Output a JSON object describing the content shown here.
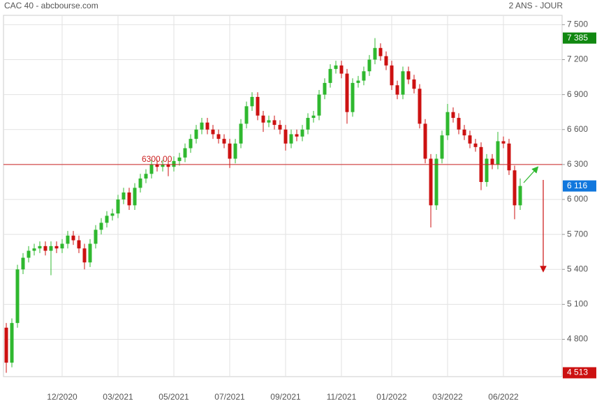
{
  "chart_data": {
    "type": "candlestick",
    "title": "CAC 40 - abcbourse.com",
    "subtitle": "2 ANS - JOUR",
    "categories": [
      null,
      null,
      null,
      null,
      null,
      null,
      null,
      null,
      null,
      null,
      "12/2020",
      null,
      null,
      null,
      null,
      null,
      null,
      null,
      null,
      null,
      "03/2021",
      null,
      null,
      null,
      null,
      null,
      null,
      null,
      null,
      null,
      "05/2021",
      null,
      null,
      null,
      null,
      null,
      null,
      null,
      null,
      null,
      "07/2021",
      null,
      null,
      null,
      null,
      null,
      null,
      null,
      null,
      null,
      "09/2021",
      null,
      null,
      null,
      null,
      null,
      null,
      null,
      null,
      null,
      "11/2021",
      null,
      null,
      null,
      null,
      null,
      null,
      null,
      null,
      "01/2022",
      null,
      null,
      null,
      null,
      null,
      null,
      null,
      null,
      null,
      "03/2022",
      null,
      null,
      null,
      null,
      null,
      null,
      null,
      null,
      null,
      "06/2022",
      null,
      null,
      null,
      null,
      null,
      null,
      null,
      null,
      null,
      null
    ],
    "open": [
      4900,
      4600,
      4940,
      5400,
      5500,
      5560,
      5580,
      5600,
      5560,
      5600,
      5580,
      5620,
      5690,
      5650,
      5580,
      5460,
      5620,
      5740,
      5800,
      5860,
      5880,
      6000,
      6060,
      5950,
      6100,
      6180,
      6220,
      6300,
      6280,
      6300,
      6280,
      6330,
      6360,
      6440,
      6520,
      6600,
      6660,
      6600,
      6560,
      6520,
      6480,
      6350,
      6480,
      6650,
      6800,
      6880,
      6720,
      6660,
      6680,
      6640,
      6600,
      6480,
      6560,
      6540,
      6600,
      6700,
      6720,
      6900,
      7000,
      7120,
      7150,
      7080,
      6750,
      7000,
      7020,
      7100,
      7200,
      7300,
      7230,
      7150,
      6980,
      6900,
      7100,
      7030,
      6950,
      6650,
      6350,
      5950,
      6350,
      6550,
      6750,
      6700,
      6600,
      6550,
      6480,
      6450,
      6150,
      6350,
      6300,
      6500,
      6480,
      6250,
      5950,
      null,
      null,
      null,
      null,
      null,
      null,
      null
    ],
    "high": [
      4940,
      4980,
      5440,
      5540,
      5600,
      5620,
      5640,
      5640,
      5640,
      5640,
      5660,
      5730,
      5730,
      5690,
      5620,
      5660,
      5780,
      5840,
      5900,
      5920,
      6040,
      6100,
      6100,
      6140,
      6220,
      6260,
      6340,
      6340,
      6340,
      6340,
      6370,
      6400,
      6480,
      6560,
      6640,
      6700,
      6700,
      6640,
      6600,
      6560,
      6520,
      6520,
      6690,
      6840,
      6920,
      6920,
      6760,
      6720,
      6720,
      6680,
      6640,
      6600,
      6600,
      6640,
      6740,
      6760,
      6940,
      7040,
      7160,
      7190,
      7190,
      7120,
      7040,
      7060,
      7140,
      7240,
      7385,
      7340,
      7270,
      7190,
      7020,
      7140,
      7140,
      7070,
      6990,
      6690,
      6390,
      6390,
      6590,
      6820,
      6790,
      6740,
      6640,
      6590,
      6520,
      6490,
      6390,
      6390,
      6580,
      6540,
      6520,
      6290,
      6180,
      null,
      null,
      null,
      null,
      null,
      null,
      null
    ],
    "low": [
      4513,
      4560,
      4900,
      5360,
      5460,
      5520,
      5540,
      5520,
      5350,
      5540,
      5540,
      5580,
      5610,
      5540,
      5400,
      5420,
      5580,
      5700,
      5760,
      5820,
      5840,
      5960,
      5910,
      5910,
      6060,
      6140,
      6180,
      6240,
      6240,
      6200,
      6240,
      6290,
      6320,
      6400,
      6480,
      6560,
      6560,
      6520,
      6480,
      6440,
      6270,
      6310,
      6440,
      6610,
      6760,
      6680,
      6580,
      6620,
      6600,
      6560,
      6420,
      6440,
      6500,
      6500,
      6560,
      6660,
      6680,
      6860,
      6960,
      7080,
      7040,
      6650,
      6710,
      6960,
      6980,
      7060,
      7160,
      7190,
      7110,
      6940,
      6860,
      6860,
      6990,
      6910,
      6610,
      6310,
      5760,
      5910,
      6310,
      6510,
      6660,
      6560,
      6510,
      6440,
      6410,
      6080,
      6110,
      6260,
      6260,
      6440,
      6210,
      5830,
      5910,
      null,
      null,
      null,
      null,
      null,
      null,
      null
    ],
    "close": [
      4600,
      4940,
      5400,
      5500,
      5560,
      5580,
      5600,
      5560,
      5600,
      5580,
      5620,
      5690,
      5650,
      5580,
      5460,
      5620,
      5740,
      5800,
      5860,
      5880,
      6000,
      6060,
      5950,
      6100,
      6180,
      6220,
      6300,
      6280,
      6300,
      6280,
      6330,
      6360,
      6440,
      6520,
      6600,
      6660,
      6600,
      6560,
      6520,
      6480,
      6350,
      6480,
      6650,
      6800,
      6880,
      6720,
      6660,
      6680,
      6640,
      6600,
      6480,
      6560,
      6540,
      6600,
      6700,
      6720,
      6900,
      7000,
      7120,
      7150,
      7080,
      6750,
      7000,
      7020,
      7100,
      7200,
      7300,
      7230,
      7150,
      6980,
      6900,
      7100,
      7030,
      6950,
      6650,
      6350,
      5950,
      6350,
      6550,
      6750,
      6700,
      6600,
      6550,
      6480,
      6450,
      6150,
      6350,
      6300,
      6500,
      6480,
      6250,
      5950,
      6116,
      null,
      null,
      null,
      null,
      null,
      null,
      null
    ],
    "up_color": "#2fb82f",
    "down_color": "#cc1111",
    "ylim": [
      4480,
      7580
    ],
    "yticks": [
      {
        "value": 4800,
        "label": "4 800"
      },
      {
        "value": 5100,
        "label": "5 100"
      },
      {
        "value": 5400,
        "label": "5 400"
      },
      {
        "value": 5700,
        "label": "5 700"
      },
      {
        "value": 6000,
        "label": "6 000"
      },
      {
        "value": 6300,
        "label": "6 300"
      },
      {
        "value": 6600,
        "label": "6 600"
      },
      {
        "value": 6900,
        "label": "6 900"
      },
      {
        "value": 7200,
        "label": "7 200"
      },
      {
        "value": 7500,
        "label": "7 500"
      }
    ],
    "grid": true,
    "hline": {
      "value": 6300,
      "label": "6300,00",
      "color": "#cc2222"
    },
    "markers": [
      {
        "value": 7385,
        "label": "7 385",
        "color": "#118811"
      },
      {
        "value": 6116,
        "label": "6 116",
        "color": "#1177dd"
      },
      {
        "value": 4513,
        "label": "4 513",
        "color": "#cc1111"
      }
    ]
  }
}
